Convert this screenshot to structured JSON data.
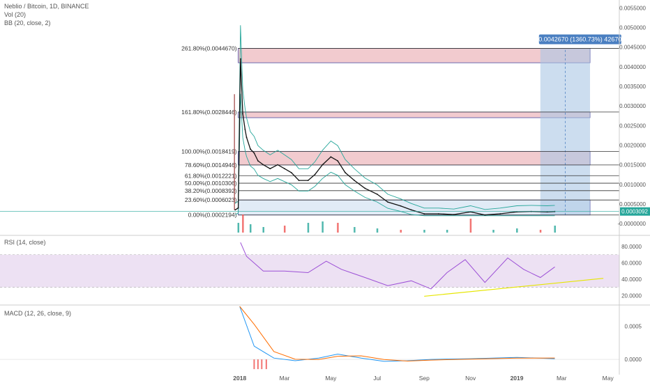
{
  "header": {
    "symbol_line": "Neblio / Bitcoin, 1D, BINANCE",
    "vol_line": "Vol (20)",
    "bb_line": "BB (20, close, 2)"
  },
  "rsi_label": "RSI (14, close)",
  "macd_label": "MACD (12, 26, close, 9)",
  "price_axis": {
    "ticks": [
      "0.0055000",
      "0.0050000",
      "0.0045000",
      "0.0040000",
      "0.0035000",
      "0.0030000",
      "0.0025000",
      "0.0020000",
      "0.0015000",
      "0.0010000",
      "0.0005000",
      "-0.0000000"
    ],
    "current_price": "0.0003092",
    "current_color": "#26a69a"
  },
  "rsi_axis": {
    "ticks": [
      "80.0000",
      "60.0000",
      "40.0000",
      "20.0000"
    ]
  },
  "macd_axis": {
    "ticks": [
      "0.0005",
      "0.0000"
    ]
  },
  "time_axis": {
    "ticks": [
      "2018",
      "Mar",
      "May",
      "Jul",
      "Sep",
      "Nov",
      "2019",
      "Mar",
      "May"
    ]
  },
  "fib_levels": [
    {
      "label": "261.80%(0.0044670)",
      "price": 0.004467
    },
    {
      "label": "161.80%(0.0028446)",
      "price": 0.0028446
    },
    {
      "label": "100.00%(0.0018419)",
      "price": 0.0018419
    },
    {
      "label": "78.60%(0.0014946)",
      "price": 0.0014946
    },
    {
      "label": "61.80%(0.0012221)",
      "price": 0.0012221
    },
    {
      "label": "50.00%(0.0010306)",
      "price": 0.0010306
    },
    {
      "label": "38.20%(0.0008392)",
      "price": 0.0008392
    },
    {
      "label": "23.60%(0.0006023)",
      "price": 0.0006023
    },
    {
      "label": "0.00%(0.0002194)",
      "price": 0.0002194
    }
  ],
  "measure_label": "0.0042670 (1360.73%) 42670",
  "colors": {
    "fib_zone": "#e8a0a8",
    "measure_box": "#aac6e4",
    "measure_label_bg": "#4a7fc1",
    "rsi_band": "#e5d4ee",
    "rsi_line": "#9c4fd6",
    "macd_line": "#2196f3",
    "signal_line": "#ff6d00",
    "bb_line": "#26a69a",
    "trendline": "#e6e600",
    "vol_up": "#26a69a",
    "vol_down": "#ef5350"
  },
  "chart_data": {
    "type": "line",
    "title": "Neblio / Bitcoin, 1D, BINANCE",
    "y_range": [
      -0.0003,
      0.0057
    ],
    "series": [
      {
        "name": "close",
        "x": [
          "2017-12-26",
          "2017-12-30",
          "2018-01-02",
          "2018-01-05",
          "2018-01-08",
          "2018-01-10",
          "2018-01-15",
          "2018-01-20",
          "2018-01-25",
          "2018-02-01",
          "2018-02-10",
          "2018-02-20",
          "2018-03-01",
          "2018-03-10",
          "2018-03-20",
          "2018-04-01",
          "2018-04-10",
          "2018-04-20",
          "2018-05-01",
          "2018-05-10",
          "2018-05-20",
          "2018-06-01",
          "2018-06-15",
          "2018-07-01",
          "2018-07-15",
          "2018-08-01",
          "2018-08-15",
          "2018-09-01",
          "2018-09-20",
          "2018-10-10",
          "2018-11-01",
          "2018-11-20",
          "2018-12-10",
          "2019-01-01",
          "2019-01-20",
          "2019-02-10",
          "2019-02-20"
        ],
        "y": [
          0.00035,
          0.0004,
          0.0042,
          0.0028,
          0.0024,
          0.0022,
          0.0019,
          0.0018,
          0.0016,
          0.0015,
          0.0014,
          0.0015,
          0.0014,
          0.0013,
          0.0011,
          0.0011,
          0.00125,
          0.0015,
          0.0017,
          0.0016,
          0.0013,
          0.0011,
          0.0009,
          0.00075,
          0.00055,
          0.00045,
          0.00035,
          0.00025,
          0.00025,
          0.00023,
          0.0003,
          0.00022,
          0.00025,
          0.0003,
          0.00031,
          0.0003,
          0.0003092
        ]
      },
      {
        "name": "RSI",
        "x": [
          "2018-01-02",
          "2018-01-10",
          "2018-02-01",
          "2018-03-01",
          "2018-04-01",
          "2018-04-25",
          "2018-05-15",
          "2018-06-15",
          "2018-07-15",
          "2018-08-15",
          "2018-09-10",
          "2018-10-01",
          "2018-10-25",
          "2018-11-20",
          "2018-12-20",
          "2019-01-10",
          "2019-02-01",
          "2019-02-20"
        ],
        "y": [
          85,
          68,
          50,
          50,
          48,
          62,
          52,
          42,
          32,
          38,
          28,
          48,
          64,
          36,
          66,
          52,
          42,
          55
        ]
      },
      {
        "name": "MACD",
        "x": [
          "2018-01-01",
          "2018-01-20",
          "2018-02-15",
          "2018-03-15",
          "2018-04-15",
          "2018-05-10",
          "2018-06-10",
          "2018-07-10",
          "2018-08-10",
          "2018-09-10",
          "2018-11-01",
          "2019-01-01",
          "2019-02-20"
        ],
        "y": [
          0.0008,
          0.0002,
          2e-05,
          -2e-05,
          2e-05,
          8e-05,
          2e-05,
          -3e-05,
          -2e-05,
          0.0,
          1e-05,
          3e-05,
          1e-05
        ]
      }
    ]
  }
}
